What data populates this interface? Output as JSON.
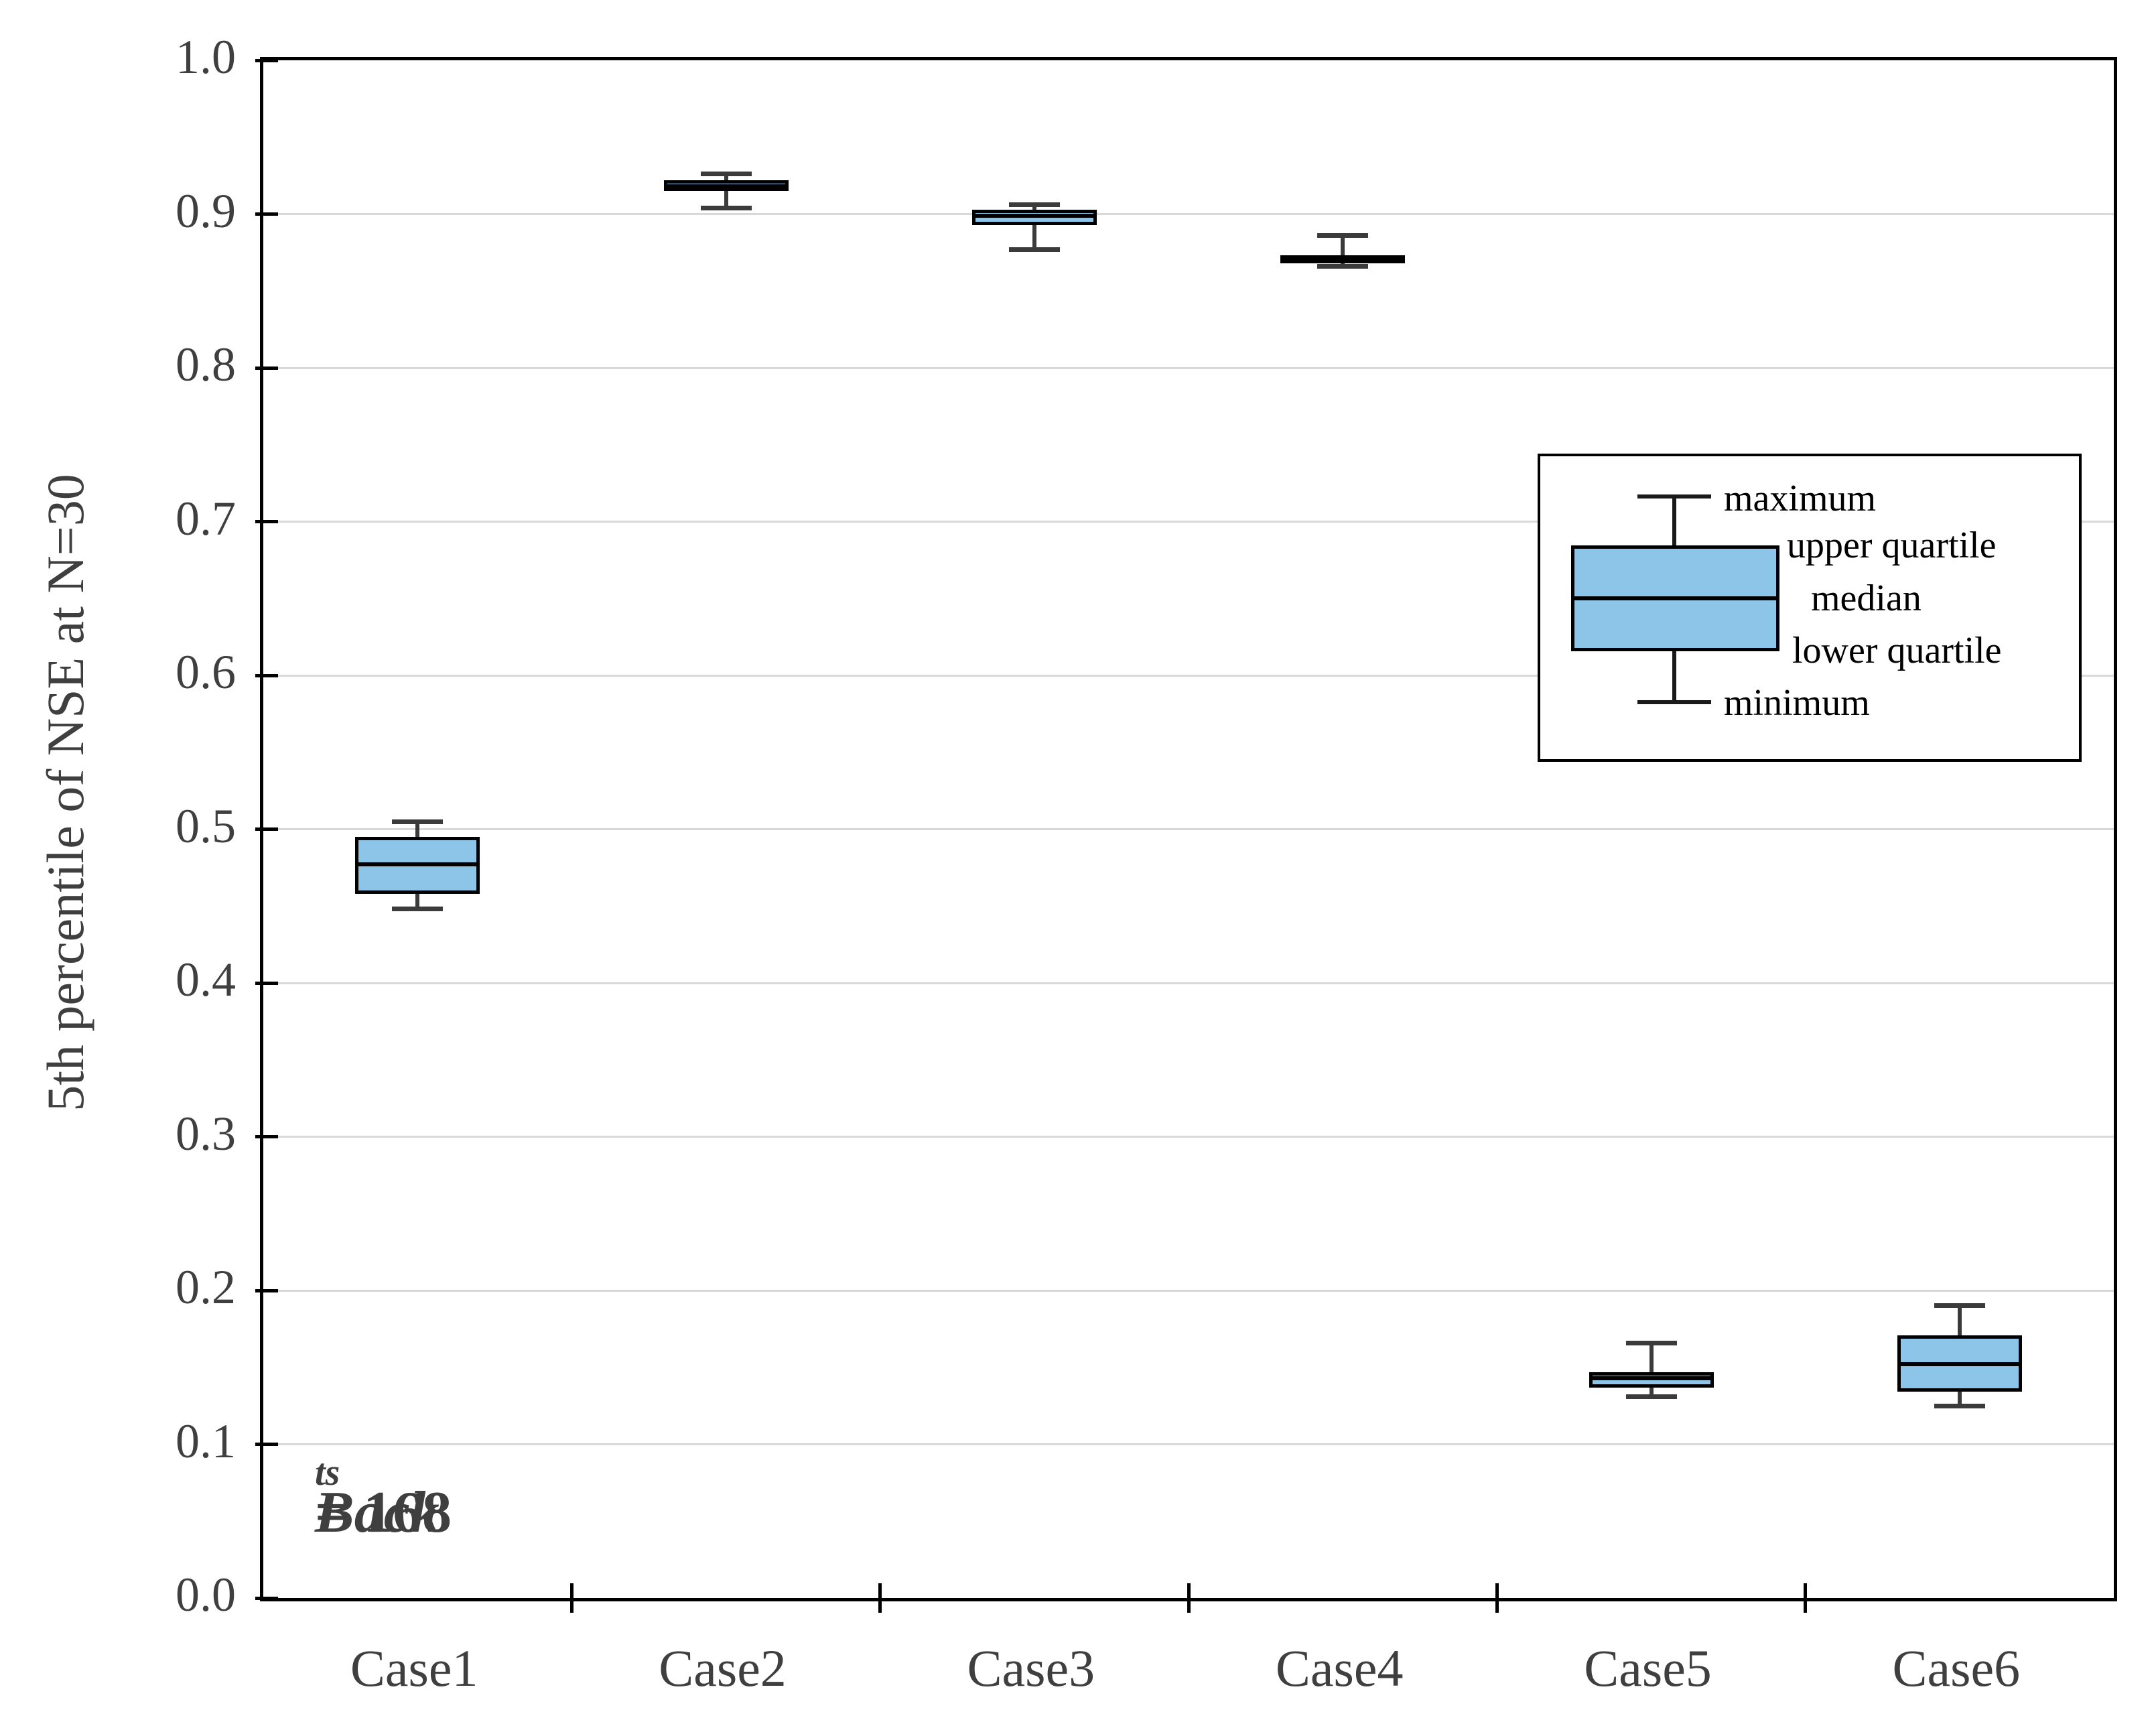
{
  "figure": {
    "background": "#ffffff"
  },
  "chart_data": {
    "type": "boxplot",
    "title": "",
    "xlabel": "",
    "ylabel": "5th percentile of NSE at N=30",
    "grid": "horizontal",
    "legend_position": "center-right",
    "y_axis": {
      "label": "5th percentile of NSE at N=30",
      "min": 0.0,
      "max": 1.0,
      "tick_step": 0.1,
      "tick_labels": [
        "0.0",
        "0.1",
        "0.2",
        "0.3",
        "0.4",
        "0.5",
        "0.6",
        "0.7",
        "0.8",
        "0.9",
        "1.0"
      ]
    },
    "categories": [
      "Case1",
      "Case2",
      "Case3",
      "Case4",
      "Case5",
      "Case6"
    ],
    "boxes": [
      {
        "category": "Case1",
        "min": 0.448,
        "q1": 0.458,
        "median": 0.477,
        "q3": 0.495,
        "max": 0.505
      },
      {
        "category": "Case2",
        "min": 0.904,
        "q1": 0.915,
        "median": 0.918,
        "q3": 0.922,
        "max": 0.926
      },
      {
        "category": "Case3",
        "min": 0.877,
        "q1": 0.893,
        "median": 0.899,
        "q3": 0.903,
        "max": 0.906
      },
      {
        "category": "Case4",
        "min": 0.866,
        "q1": 0.868,
        "median": 0.87,
        "q3": 0.873,
        "max": 0.886
      },
      {
        "category": "Case5",
        "min": 0.131,
        "q1": 0.137,
        "median": 0.143,
        "q3": 0.147,
        "max": 0.166
      },
      {
        "category": "Case6",
        "min": 0.125,
        "q1": 0.134,
        "median": 0.152,
        "q3": 0.171,
        "max": 0.19
      }
    ],
    "legend": {
      "labels": [
        "maximum",
        "upper quartile",
        "median",
        "lower quartile",
        "minimum"
      ]
    },
    "annotation": {
      "base": "Back",
      "subscript": "ts",
      "rest": " = 168"
    },
    "colors": {
      "box_fill": "#8cc5e8",
      "box_border": "#000000",
      "whisker": "#3b3b3b",
      "gridline": "#d9d9d9",
      "frame": "#000000",
      "text": "#3f3f3f",
      "legend_text": "#000000"
    }
  }
}
